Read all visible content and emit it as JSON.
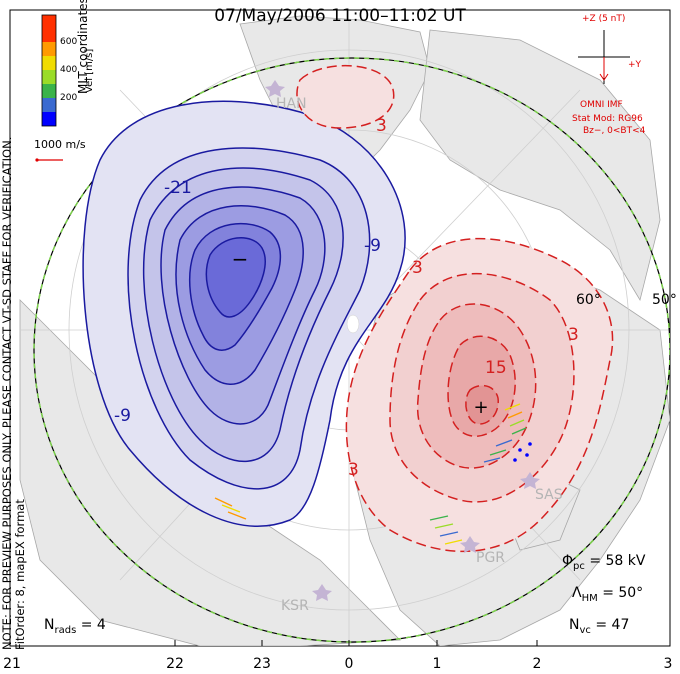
{
  "header": {
    "title": "07/May/2006 11:00–11:02 UT"
  },
  "side_note": {
    "line1": "NOTE: FOR PREVIEW PURPOSES ONLY. PLEASE CONTACT VT-SD STAFF FOR VERIFICATION.",
    "line2": "FitOrder: 8, mapEX format"
  },
  "velocity_legend": {
    "title": "MLT coordinates",
    "unit": "Vel [m/s]",
    "ticks": [
      "600",
      "400",
      "200"
    ],
    "colors": [
      "#0000ff",
      "#3a6ad0",
      "#3ab34a",
      "#9adc28",
      "#f0dc00",
      "#ff9a00",
      "#ff3000"
    ]
  },
  "scale": {
    "label": "1000 m/s"
  },
  "imf": {
    "bz_label": "+Z (5 nT)",
    "by_label": "+Y",
    "source": "OMNI IMF",
    "stat_mod": "Stat Mod: RG96",
    "condition": "Bz−, 0<BT<4"
  },
  "stats": {
    "phi_pc": "Φpc = 58 kV",
    "phi_symbol": "Φ",
    "phi_sub": "pc",
    "phi_value": "= 58 kV",
    "lambda_symbol": "Λ",
    "lambda_sub": "HM",
    "lambda_value": "= 50°",
    "nvc_symbol": "N",
    "nvc_sub": "vc",
    "nvc_value": "= 47",
    "nrads_symbol": "N",
    "nrads_sub": "rads",
    "nrads_value": "= 4"
  },
  "mlt_axis": [
    "21",
    "22",
    "23",
    "0",
    "1",
    "2",
    "3"
  ],
  "latitude_labels": [
    "60°",
    "50°"
  ],
  "stations": [
    "HAN",
    "SAS",
    "PGR",
    "KSR"
  ],
  "contour_labels": {
    "positive": [
      "3",
      "3",
      "3",
      "3",
      "15"
    ],
    "negative": [
      "-21",
      "-9",
      "-9"
    ]
  },
  "potential_markers": {
    "min": "−",
    "max": "+"
  },
  "colors": {
    "negative_cell": "#3030c8",
    "positive_cell": "#d42020",
    "land": "#e6e6e6",
    "coast": "#a0a0a0",
    "boundary_green": "#7ad04a",
    "imf_red": "#e00000"
  }
}
